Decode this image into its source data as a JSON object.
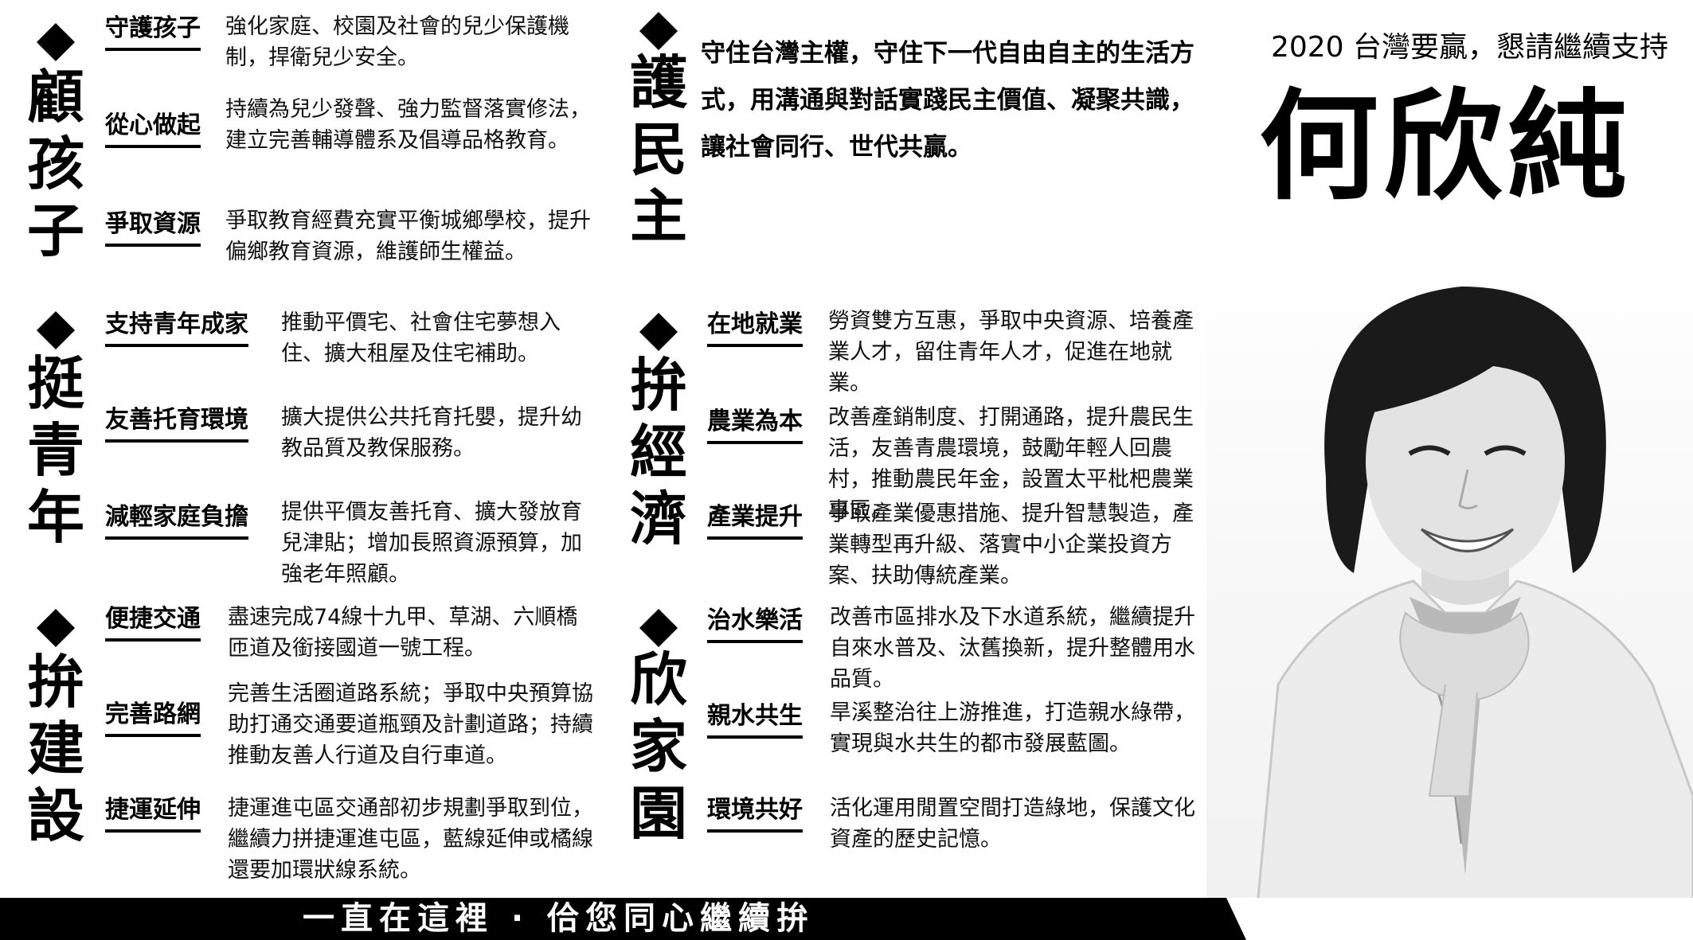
{
  "header": {
    "slogan": "2020 台灣要贏，懇請繼續支持",
    "name": "何欣純"
  },
  "sections": {
    "gu": {
      "title": "顧孩子",
      "items": [
        {
          "label": "守護孩子",
          "desc": "強化家庭、校園及社會的兒少保護機制，捍衛兒少安全。"
        },
        {
          "label": "從心做起",
          "desc": "持續為兒少發聲、強力監督落實修法，建立完善輔導體系及倡導品格教育。"
        },
        {
          "label": "爭取資源",
          "desc": "爭取教育經費充實平衡城鄉學校，提升偏鄉教育資源，維護師生權益。"
        }
      ]
    },
    "ting": {
      "title": "挺青年",
      "items": [
        {
          "label": "支持青年成家",
          "desc": "推動平價宅、社會住宅夢想入住、擴大租屋及住宅補助。"
        },
        {
          "label": "友善托育環境",
          "desc": "擴大提供公共托育托嬰，提升幼教品質及教保服務。"
        },
        {
          "label": "減輕家庭負擔",
          "desc": "提供平價友善托育、擴大發放育兒津貼；增加長照資源預算，加強老年照顧。"
        }
      ]
    },
    "jian": {
      "title": "拚建設",
      "items": [
        {
          "label": "便捷交通",
          "desc": "盡速完成74線十九甲、草湖、六順橋匝道及銜接國道一號工程。"
        },
        {
          "label": "完善路網",
          "desc": "完善生活圈道路系統；爭取中央預算協助打通交通要道瓶頸及計劃道路；持續推動友善人行道及自行車道。"
        },
        {
          "label": "捷運延伸",
          "desc": "捷運進屯區交通部初步規劃爭取到位，繼續力拼捷運進屯區，藍線延伸或橘線還要加環狀線系統。"
        }
      ]
    },
    "hu": {
      "title": "護民主",
      "text": "守住台灣主權，守住下一代自由自主的生活方式，用溝通與對話實踐民主價值、凝聚共識，讓社會同行、世代共贏。"
    },
    "jing": {
      "title": "拚經濟",
      "items": [
        {
          "label": "在地就業",
          "desc": "勞資雙方互惠，爭取中央資源、培養產業人才，留住青年人才，促進在地就業。"
        },
        {
          "label": "農業為本",
          "desc": "改善產銷制度、打開通路，提升農民生活，友善青農環境，鼓勵年輕人回農村，推動農民年金，設置太平枇杷農業專區。"
        },
        {
          "label": "產業提升",
          "desc": "爭取產業優惠措施、提升智慧製造，產業轉型再升級、落實中小企業投資方案、扶助傳統產業。"
        }
      ]
    },
    "xin": {
      "title": "欣家園",
      "items": [
        {
          "label": "治水樂活",
          "desc": "改善市區排水及下水道系統，繼續提升自來水普及、汰舊換新，提升整體用水品質。"
        },
        {
          "label": "親水共生",
          "desc": "旱溪整治往上游推進，打造親水綠帶，實現與水共生的都市發展藍圖。"
        },
        {
          "label": "環境共好",
          "desc": "活化運用閒置空間打造綠地，保護文化資產的歷史記憶。"
        }
      ]
    }
  },
  "footer": {
    "slogan": "一直在這裡 · 佮您同心繼續拚"
  }
}
